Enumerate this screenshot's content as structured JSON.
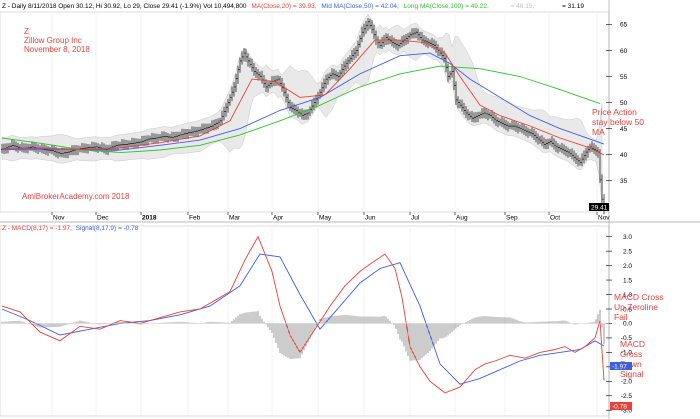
{
  "header": {
    "price": {
      "label": "Z - Daily 8/11/2018 Open 30.12, Hi 30.92, Lo 29, Close 29.41 (-1.9%) Vol 10,494,800",
      "ma20": "MA(Close,20) = 39.93,",
      "ma50": "Mid MA(Close,50) = 42.04,",
      "ma100": "Long MA(Close,100) = 49.22,",
      "extra": "= 46.15,",
      "extra2": "= 31.19"
    },
    "macd": {
      "label": "Z - MACD(8,17) = -1.97,",
      "signal": "Signal(8,17,9) = -0.78"
    }
  },
  "annotations": {
    "company_lines": [
      "Z",
      "Zillow Group Inc",
      "November 8, 2018"
    ],
    "watermark": "AmiBrokerAcademy.com  2018",
    "price_action": [
      "Price Action",
      "stay below 50",
      "MA"
    ],
    "macd_cross_up": [
      "MACD Cross",
      "Up Zeroline",
      "Fail"
    ],
    "macd_cross_down": [
      "MACD",
      "Cross",
      "Down",
      "Signal"
    ]
  },
  "colors": {
    "price": "#000000",
    "ma20": "#e8413a",
    "ma50": "#3f5fe0",
    "ma100": "#2ec42e",
    "band": "#cfcfcf",
    "macd": "#e8413a",
    "signal": "#3f5fe0",
    "hist": "#555555",
    "annotation": "#e8413a",
    "last_price_tag": "#000000",
    "macd_tag": "#3f5fe0",
    "signal_tag": "#e8413a"
  },
  "chart_data": [
    {
      "type": "line",
      "title": "Z - Daily 8/11/2018",
      "x_tick_labels": [
        "Nov",
        "Dec",
        "2018",
        "Feb",
        "Mar",
        "Apr",
        "May",
        "Jun",
        "Jul",
        "Aug",
        "Sep",
        "Oct",
        "Nov"
      ],
      "x_tick_pos": [
        52,
        96,
        141,
        188,
        228,
        272,
        318,
        364,
        410,
        455,
        505,
        549,
        597
      ],
      "ylim": [
        29,
        67
      ],
      "y_ticks": [
        35,
        40,
        45,
        50,
        55,
        60,
        65
      ],
      "last_price_label": "29.41",
      "series": [
        {
          "name": "Close",
          "x": [
            2,
            12,
            22,
            32,
            42,
            52,
            60,
            68,
            76,
            86,
            96,
            106,
            116,
            126,
            136,
            142,
            148,
            156,
            164,
            172,
            180,
            188,
            196,
            204,
            212,
            220,
            228,
            234,
            240,
            244,
            248,
            254,
            260,
            266,
            272,
            278,
            284,
            290,
            296,
            302,
            308,
            314,
            320,
            326,
            332,
            338,
            344,
            350,
            356,
            362,
            368,
            372,
            376,
            380,
            386,
            392,
            398,
            404,
            410,
            416,
            422,
            428,
            434,
            440,
            444,
            448,
            452,
            456,
            460,
            466,
            472,
            478,
            484,
            490,
            496,
            502,
            508,
            514,
            520,
            526,
            532,
            538,
            544,
            550,
            556,
            562,
            568,
            574,
            580,
            586,
            590,
            594,
            598,
            601,
            604
          ],
          "y": [
            41.0,
            41.8,
            41.2,
            41.5,
            41.0,
            40.8,
            40.2,
            40.5,
            41.0,
            41.3,
            41.5,
            41.0,
            41.8,
            42.0,
            42.3,
            42.5,
            43.0,
            43.2,
            43.5,
            43.3,
            43.8,
            44.2,
            44.5,
            45.0,
            45.5,
            46.5,
            50.0,
            53.0,
            58.0,
            59.5,
            58.0,
            56.0,
            55.0,
            53.0,
            54.0,
            54.5,
            52.0,
            49.0,
            48.5,
            47.5,
            48.0,
            50.0,
            52.0,
            54.5,
            55.5,
            55.0,
            57.0,
            58.5,
            60.0,
            63.5,
            65.5,
            64.0,
            62.0,
            61.0,
            62.5,
            61.5,
            61.0,
            62.0,
            63.0,
            63.5,
            62.0,
            61.5,
            61.0,
            59.5,
            58.5,
            55.0,
            56.0,
            50.5,
            49.5,
            48.0,
            47.0,
            47.5,
            48.0,
            47.5,
            46.5,
            46.0,
            45.5,
            45.5,
            45.0,
            44.5,
            44.0,
            43.0,
            42.0,
            42.5,
            41.5,
            41.0,
            40.5,
            39.5,
            38.5,
            40.5,
            41.5,
            41.0,
            40.5,
            32.5,
            29.41
          ]
        },
        {
          "name": "MA(Close,20)",
          "x": [
            2,
            40,
            80,
            120,
            160,
            200,
            230,
            252,
            275,
            300,
            325,
            350,
            375,
            400,
            425,
            445,
            460,
            480,
            500,
            530,
            560,
            590,
            604
          ],
          "y": [
            41.2,
            41.3,
            41.0,
            41.3,
            42.3,
            43.6,
            46.5,
            54.5,
            54.0,
            51.0,
            51.5,
            56.5,
            62.0,
            62.0,
            61.5,
            59.5,
            55.0,
            49.5,
            47.5,
            45.5,
            43.2,
            41.3,
            39.93
          ]
        },
        {
          "name": "Mid MA(Close,50)",
          "x": [
            2,
            40,
            80,
            120,
            160,
            200,
            240,
            280,
            320,
            360,
            400,
            430,
            450,
            470,
            500,
            530,
            560,
            590,
            604
          ],
          "y": [
            41.0,
            41.1,
            41.0,
            40.9,
            41.8,
            42.8,
            45.0,
            48.5,
            51.0,
            55.5,
            59.0,
            59.5,
            57.5,
            54.5,
            51.0,
            47.5,
            45.0,
            43.0,
            42.04
          ]
        },
        {
          "name": "Long MA(Close,100)",
          "x": [
            2,
            40,
            80,
            120,
            160,
            200,
            240,
            280,
            320,
            360,
            400,
            440,
            480,
            520,
            560,
            600
          ],
          "y": [
            43.2,
            42.2,
            41.0,
            40.4,
            40.9,
            41.8,
            43.8,
            46.5,
            49.5,
            53.0,
            55.5,
            57.0,
            56.5,
            55.0,
            52.5,
            49.8
          ]
        }
      ]
    },
    {
      "type": "line",
      "title": "Z - MACD(8,17)",
      "ylim": [
        -3.2,
        3.3
      ],
      "y_ticks": [
        3.0,
        2.5,
        2.0,
        1.5,
        1.0,
        0.5,
        0.0,
        -0.5,
        -1.0,
        -1.5,
        -2.0,
        -2.5,
        -3.0
      ],
      "macd_label": "-1.97",
      "signal_label": "-0.78",
      "series": [
        {
          "name": "MACD(8,17)",
          "x": [
            2,
            20,
            40,
            60,
            80,
            100,
            120,
            140,
            160,
            180,
            200,
            215,
            230,
            245,
            258,
            265,
            272,
            280,
            290,
            300,
            315,
            330,
            345,
            360,
            372,
            385,
            395,
            402,
            410,
            420,
            430,
            445,
            460,
            475,
            485,
            495,
            510,
            525,
            540,
            555,
            565,
            575,
            585,
            595,
            600,
            604
          ],
          "y": [
            0.6,
            0.4,
            -0.3,
            -0.6,
            -0.1,
            -0.2,
            0.1,
            0.0,
            0.2,
            0.4,
            0.5,
            0.8,
            1.1,
            2.2,
            3.0,
            2.4,
            1.8,
            0.6,
            -0.4,
            -1.0,
            -0.2,
            0.6,
            1.3,
            1.8,
            2.1,
            2.4,
            1.9,
            0.9,
            -0.8,
            -1.5,
            -2.0,
            -2.4,
            -2.2,
            -1.6,
            -1.4,
            -1.3,
            -1.1,
            -1.2,
            -1.0,
            -0.9,
            -0.8,
            -1.0,
            -0.8,
            -0.5,
            0.1,
            -1.97
          ]
        },
        {
          "name": "Signal(8,17,9)",
          "x": [
            2,
            30,
            60,
            90,
            120,
            150,
            180,
            210,
            240,
            260,
            280,
            300,
            320,
            340,
            360,
            380,
            400,
            420,
            440,
            460,
            480,
            500,
            520,
            540,
            560,
            580,
            595,
            604
          ],
          "y": [
            0.5,
            0.1,
            -0.4,
            -0.2,
            0.0,
            0.1,
            0.3,
            0.6,
            1.3,
            2.4,
            2.3,
            1.0,
            -0.2,
            0.6,
            1.4,
            1.9,
            2.1,
            0.6,
            -1.4,
            -2.1,
            -1.9,
            -1.6,
            -1.3,
            -1.1,
            -1.0,
            -0.9,
            -0.6,
            -0.78
          ]
        }
      ]
    }
  ]
}
